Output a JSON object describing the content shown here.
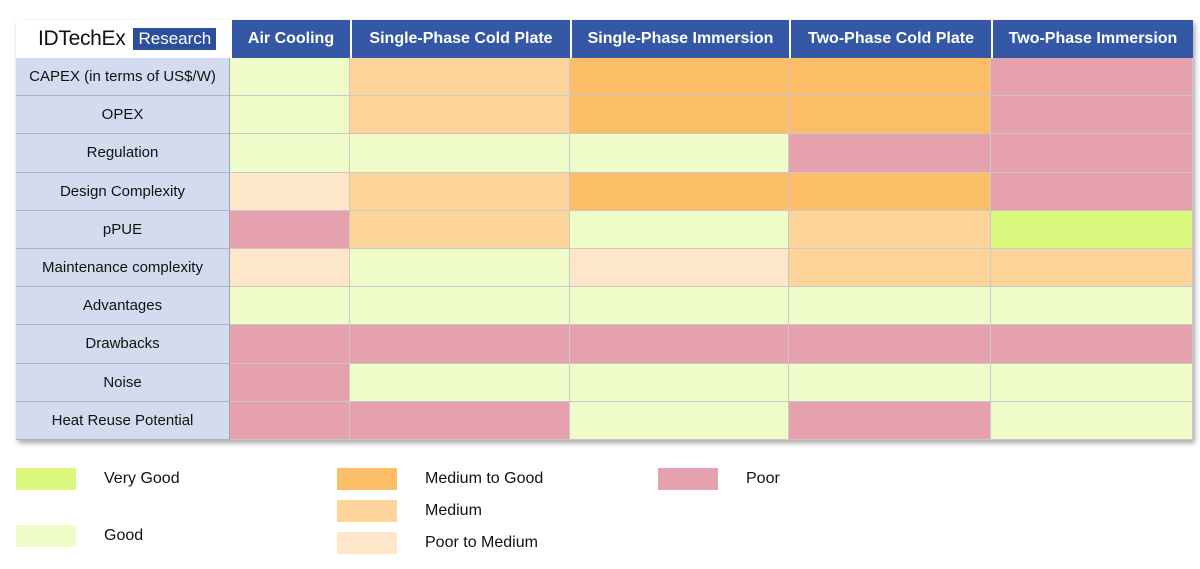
{
  "brand": {
    "name": "IDTechEx",
    "tag": "Research"
  },
  "table": {
    "columns": [
      "Air Cooling",
      "Single-Phase Cold Plate",
      "Single-Phase Immersion",
      "Two-Phase Cold Plate",
      "Two-Phase Immersion"
    ],
    "rows": [
      {
        "label": "CAPEX (in terms of US$/W)",
        "ratings": [
          "Good",
          "Medium",
          "Medium to Good",
          "Medium to Good",
          "Poor"
        ]
      },
      {
        "label": "OPEX",
        "ratings": [
          "Good",
          "Medium",
          "Medium to Good",
          "Medium to Good",
          "Poor"
        ]
      },
      {
        "label": "Regulation",
        "ratings": [
          "Good",
          "Good",
          "Good",
          "Poor",
          "Poor"
        ]
      },
      {
        "label": "Design Complexity",
        "ratings": [
          "Poor to Medium",
          "Medium",
          "Medium to Good",
          "Medium to Good",
          "Poor"
        ]
      },
      {
        "label": "pPUE",
        "ratings": [
          "Poor",
          "Medium",
          "Good",
          "Medium",
          "Very Good"
        ]
      },
      {
        "label": "Maintenance complexity",
        "ratings": [
          "Poor to Medium",
          "Good",
          "Poor to Medium",
          "Medium",
          "Medium"
        ]
      },
      {
        "label": "Advantages",
        "ratings": [
          "Good",
          "Good",
          "Good",
          "Good",
          "Good"
        ]
      },
      {
        "label": "Drawbacks",
        "ratings": [
          "Poor",
          "Poor",
          "Poor",
          "Poor",
          "Poor"
        ]
      },
      {
        "label": "Noise",
        "ratings": [
          "Poor",
          "Good",
          "Good",
          "Good",
          "Good"
        ]
      },
      {
        "label": "Heat Reuse Potential",
        "ratings": [
          "Poor",
          "Poor",
          "Good",
          "Poor",
          "Good"
        ]
      }
    ]
  },
  "legend": [
    {
      "name": "Very Good",
      "color": "#dcf97f"
    },
    {
      "name": "Good",
      "color": "#effcca"
    },
    {
      "name": "Medium to Good",
      "color": "#fbbd66"
    },
    {
      "name": "Medium",
      "color": "#fcd49a"
    },
    {
      "name": "Poor to Medium",
      "color": "#fde7c8"
    },
    {
      "name": "Poor",
      "color": "#e5a2ae"
    }
  ]
}
